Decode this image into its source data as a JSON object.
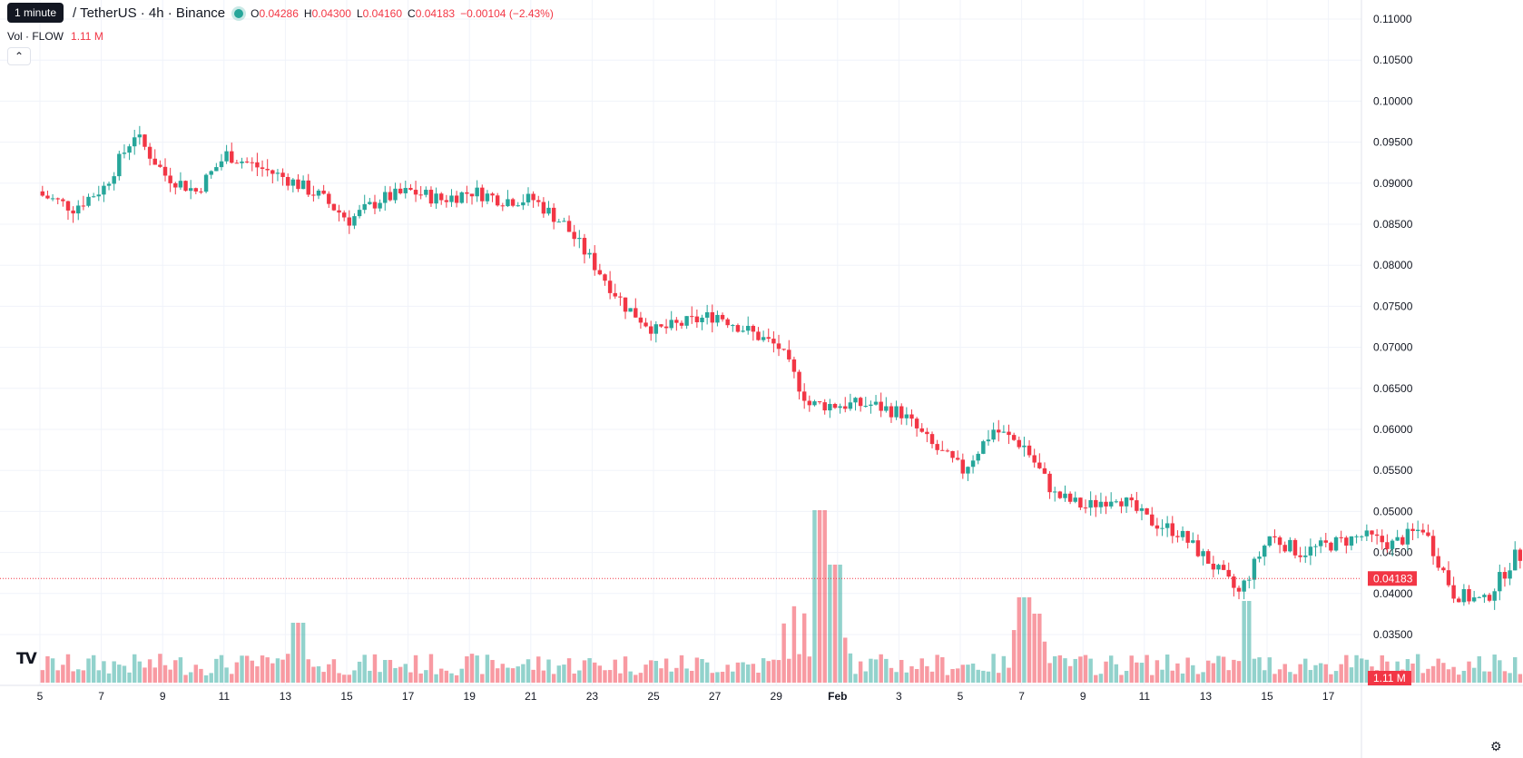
{
  "header": {
    "tooltip": "1 minute",
    "symbol_title": "/ TetherUS · 4h · Binance",
    "ohlc": [
      {
        "key": "O",
        "value": "0.04286"
      },
      {
        "key": "H",
        "value": "0.04300"
      },
      {
        "key": "L",
        "value": "0.04160"
      },
      {
        "key": "C",
        "value": "0.04183"
      }
    ],
    "change": "−0.00104 (−2.43%)",
    "volume_label": "Vol · FLOW",
    "volume_value": "1.11 M",
    "collapse_icon": "chevron-up-icon",
    "collapse_glyph": "⌃"
  },
  "branding": {
    "logo_text": "TV",
    "settings_icon": "settings-gear-icon",
    "settings_glyph": "⚙"
  },
  "chart_data": {
    "type": "candlestick",
    "title": "",
    "xlabel": "",
    "ylabel": "",
    "ylim": [
      0.03,
      0.112
    ],
    "y_ticks": [
      "0.03500",
      "0.04000",
      "0.04500",
      "0.05000",
      "0.05500",
      "0.06000",
      "0.06500",
      "0.07000",
      "0.07500",
      "0.08000",
      "0.08500",
      "0.09000",
      "0.09500",
      "0.10000",
      "0.10500",
      "0.11000"
    ],
    "x_ticks": [
      "5",
      "7",
      "9",
      "11",
      "13",
      "15",
      "17",
      "19",
      "21",
      "23",
      "25",
      "27",
      "29",
      "Feb",
      "3",
      "5",
      "7",
      "9",
      "11",
      "13",
      "15",
      "17"
    ],
    "x_ticks_bold": [
      "Feb"
    ],
    "grid": true,
    "last_price_label": "0.04183",
    "last_price": 0.04183,
    "volume_label": "1.11 M",
    "up_color": "#26a69a",
    "down_color": "#f23645",
    "daily_closes": [
      0.0885,
      0.087,
      0.0895,
      0.096,
      0.091,
      0.089,
      0.0935,
      0.092,
      0.0905,
      0.0885,
      0.0855,
      0.088,
      0.089,
      0.088,
      0.089,
      0.088,
      0.088,
      0.085,
      0.08,
      0.075,
      0.072,
      0.073,
      0.074,
      0.072,
      0.07,
      0.063,
      0.063,
      0.063,
      0.062,
      0.058,
      0.055,
      0.06,
      0.058,
      0.052,
      0.0505,
      0.052,
      0.049,
      0.0475,
      0.044,
      0.04,
      0.047,
      0.045,
      0.046,
      0.047,
      0.046,
      0.048,
      0.04,
      0.039,
      0.0445,
      0.0448,
      0.0418
    ],
    "volume_peaks_millions": [
      {
        "date": "Jan 30",
        "value": 9.5
      },
      {
        "date": "Jan 30",
        "value": 6.5
      },
      {
        "date": "Feb 6",
        "value": 4.7
      },
      {
        "date": "Feb 6",
        "value": 3.8
      },
      {
        "date": "Feb 13",
        "value": 4.5
      },
      {
        "date": "Jan 13",
        "value": 3.3
      }
    ]
  }
}
